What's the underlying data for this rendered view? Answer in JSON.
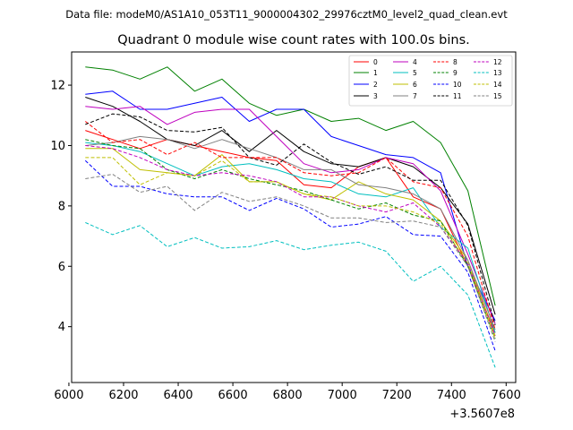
{
  "suptitle": "Data file: modeM0/AS1A10_053T11_9000004302_29976cztM0_level2_quad_clean.evt",
  "chart_data": {
    "type": "line",
    "title": "Quadrant 0 module wise count rates with 100.0s bins.",
    "xlabel": "",
    "ylabel": "",
    "x_offset_label": "+3.5607e8",
    "xlim": [
      6010,
      7635
    ],
    "ylim": [
      2.15,
      13.1
    ],
    "x_ticks": [
      6000,
      6200,
      6400,
      6600,
      6800,
      7000,
      7200,
      7400,
      7600
    ],
    "y_ticks": [
      4,
      6,
      8,
      10,
      12
    ],
    "grid": false,
    "legend_position": "top-right",
    "x": [
      6060,
      6160,
      6260,
      6360,
      6460,
      6560,
      6660,
      6760,
      6860,
      6960,
      7060,
      7160,
      7260,
      7360,
      7460,
      7560
    ],
    "series": [
      {
        "name": "0",
        "color": "#ff0000",
        "dash": "solid",
        "values": [
          10.5,
          10.2,
          9.9,
          10.2,
          10.0,
          9.8,
          9.6,
          9.5,
          8.7,
          8.6,
          9.3,
          9.6,
          8.3,
          7.9,
          6.0,
          3.8
        ]
      },
      {
        "name": "1",
        "color": "#008000",
        "dash": "solid",
        "values": [
          12.6,
          12.5,
          12.2,
          12.6,
          11.8,
          12.2,
          11.4,
          11.0,
          11.2,
          10.8,
          10.9,
          10.5,
          10.8,
          10.1,
          8.5,
          4.7
        ]
      },
      {
        "name": "2",
        "color": "#0000ff",
        "dash": "solid",
        "values": [
          11.7,
          11.8,
          11.2,
          11.2,
          11.4,
          11.6,
          10.8,
          11.2,
          11.2,
          10.3,
          10.0,
          9.7,
          9.6,
          9.1,
          6.0,
          4.2
        ]
      },
      {
        "name": "3",
        "color": "#000000",
        "dash": "solid",
        "values": [
          11.6,
          11.3,
          10.8,
          10.2,
          10.0,
          10.5,
          9.8,
          10.5,
          9.8,
          9.4,
          9.3,
          9.6,
          9.3,
          8.6,
          7.4,
          4.4
        ]
      },
      {
        "name": "4",
        "color": "#bf00bf",
        "dash": "solid",
        "values": [
          11.3,
          11.2,
          11.3,
          10.7,
          11.1,
          11.2,
          11.2,
          10.3,
          9.4,
          9.1,
          9.2,
          9.6,
          9.4,
          8.5,
          6.4,
          4.1
        ]
      },
      {
        "name": "5",
        "color": "#00bfbf",
        "dash": "solid",
        "values": [
          10.1,
          10.0,
          9.8,
          9.4,
          9.0,
          9.3,
          9.4,
          9.2,
          8.9,
          8.8,
          8.4,
          8.3,
          8.6,
          7.3,
          6.6,
          3.8
        ]
      },
      {
        "name": "6",
        "color": "#bfbf00",
        "dash": "solid",
        "values": [
          9.9,
          9.9,
          9.2,
          9.1,
          9.0,
          9.7,
          8.8,
          8.8,
          8.4,
          8.2,
          8.8,
          8.4,
          8.2,
          7.5,
          6.2,
          3.7
        ]
      },
      {
        "name": "7",
        "color": "#808080",
        "dash": "solid",
        "values": [
          10.0,
          10.1,
          10.3,
          10.2,
          9.9,
          10.2,
          9.9,
          9.6,
          9.2,
          9.2,
          8.7,
          8.6,
          8.4,
          7.9,
          6.2,
          3.9
        ]
      },
      {
        "name": "8",
        "color": "#ff0000",
        "dash": "dashed",
        "values": [
          10.8,
          10.1,
          10.2,
          9.7,
          10.1,
          9.6,
          9.6,
          9.6,
          9.1,
          9.0,
          9.1,
          9.6,
          8.8,
          8.6,
          7.0,
          3.9
        ]
      },
      {
        "name": "9",
        "color": "#008000",
        "dash": "dashed",
        "values": [
          10.2,
          10.0,
          9.9,
          9.2,
          8.9,
          9.2,
          8.9,
          8.7,
          8.5,
          8.2,
          7.9,
          8.1,
          7.7,
          7.5,
          6.0,
          3.6
        ]
      },
      {
        "name": "10",
        "color": "#0000ff",
        "dash": "dashed",
        "values": [
          9.5,
          8.65,
          8.65,
          8.4,
          8.3,
          8.3,
          7.85,
          8.25,
          7.9,
          7.3,
          7.4,
          7.65,
          7.05,
          7.0,
          5.8,
          3.2
        ]
      },
      {
        "name": "11",
        "color": "#000000",
        "dash": "dashed",
        "values": [
          10.7,
          11.05,
          10.95,
          10.5,
          10.45,
          10.6,
          9.6,
          9.35,
          10.05,
          9.45,
          9.05,
          9.3,
          8.85,
          8.85,
          7.35,
          4.05
        ]
      },
      {
        "name": "12",
        "color": "#bf00bf",
        "dash": "dashed",
        "values": [
          10.0,
          9.9,
          9.6,
          9.2,
          9.0,
          9.1,
          9.0,
          8.8,
          8.3,
          8.3,
          8.0,
          7.8,
          8.1,
          7.3,
          6.1,
          3.7
        ]
      },
      {
        "name": "13",
        "color": "#00bfbf",
        "dash": "dashed",
        "values": [
          7.45,
          7.05,
          7.35,
          6.65,
          6.95,
          6.6,
          6.65,
          6.85,
          6.55,
          6.7,
          6.8,
          6.5,
          5.5,
          6.0,
          5.05,
          2.65
        ]
      },
      {
        "name": "14",
        "color": "#bfbf00",
        "dash": "dashed",
        "values": [
          9.6,
          9.6,
          8.7,
          9.1,
          9.0,
          9.5,
          8.8,
          8.8,
          8.4,
          8.3,
          8.0,
          8.0,
          7.8,
          7.4,
          6.1,
          3.6
        ]
      },
      {
        "name": "15",
        "color": "#808080",
        "dash": "dashed",
        "values": [
          8.9,
          9.05,
          8.45,
          8.65,
          7.85,
          8.45,
          8.15,
          8.3,
          8.0,
          7.6,
          7.6,
          7.45,
          7.5,
          7.3,
          6.0,
          3.5
        ]
      }
    ]
  }
}
